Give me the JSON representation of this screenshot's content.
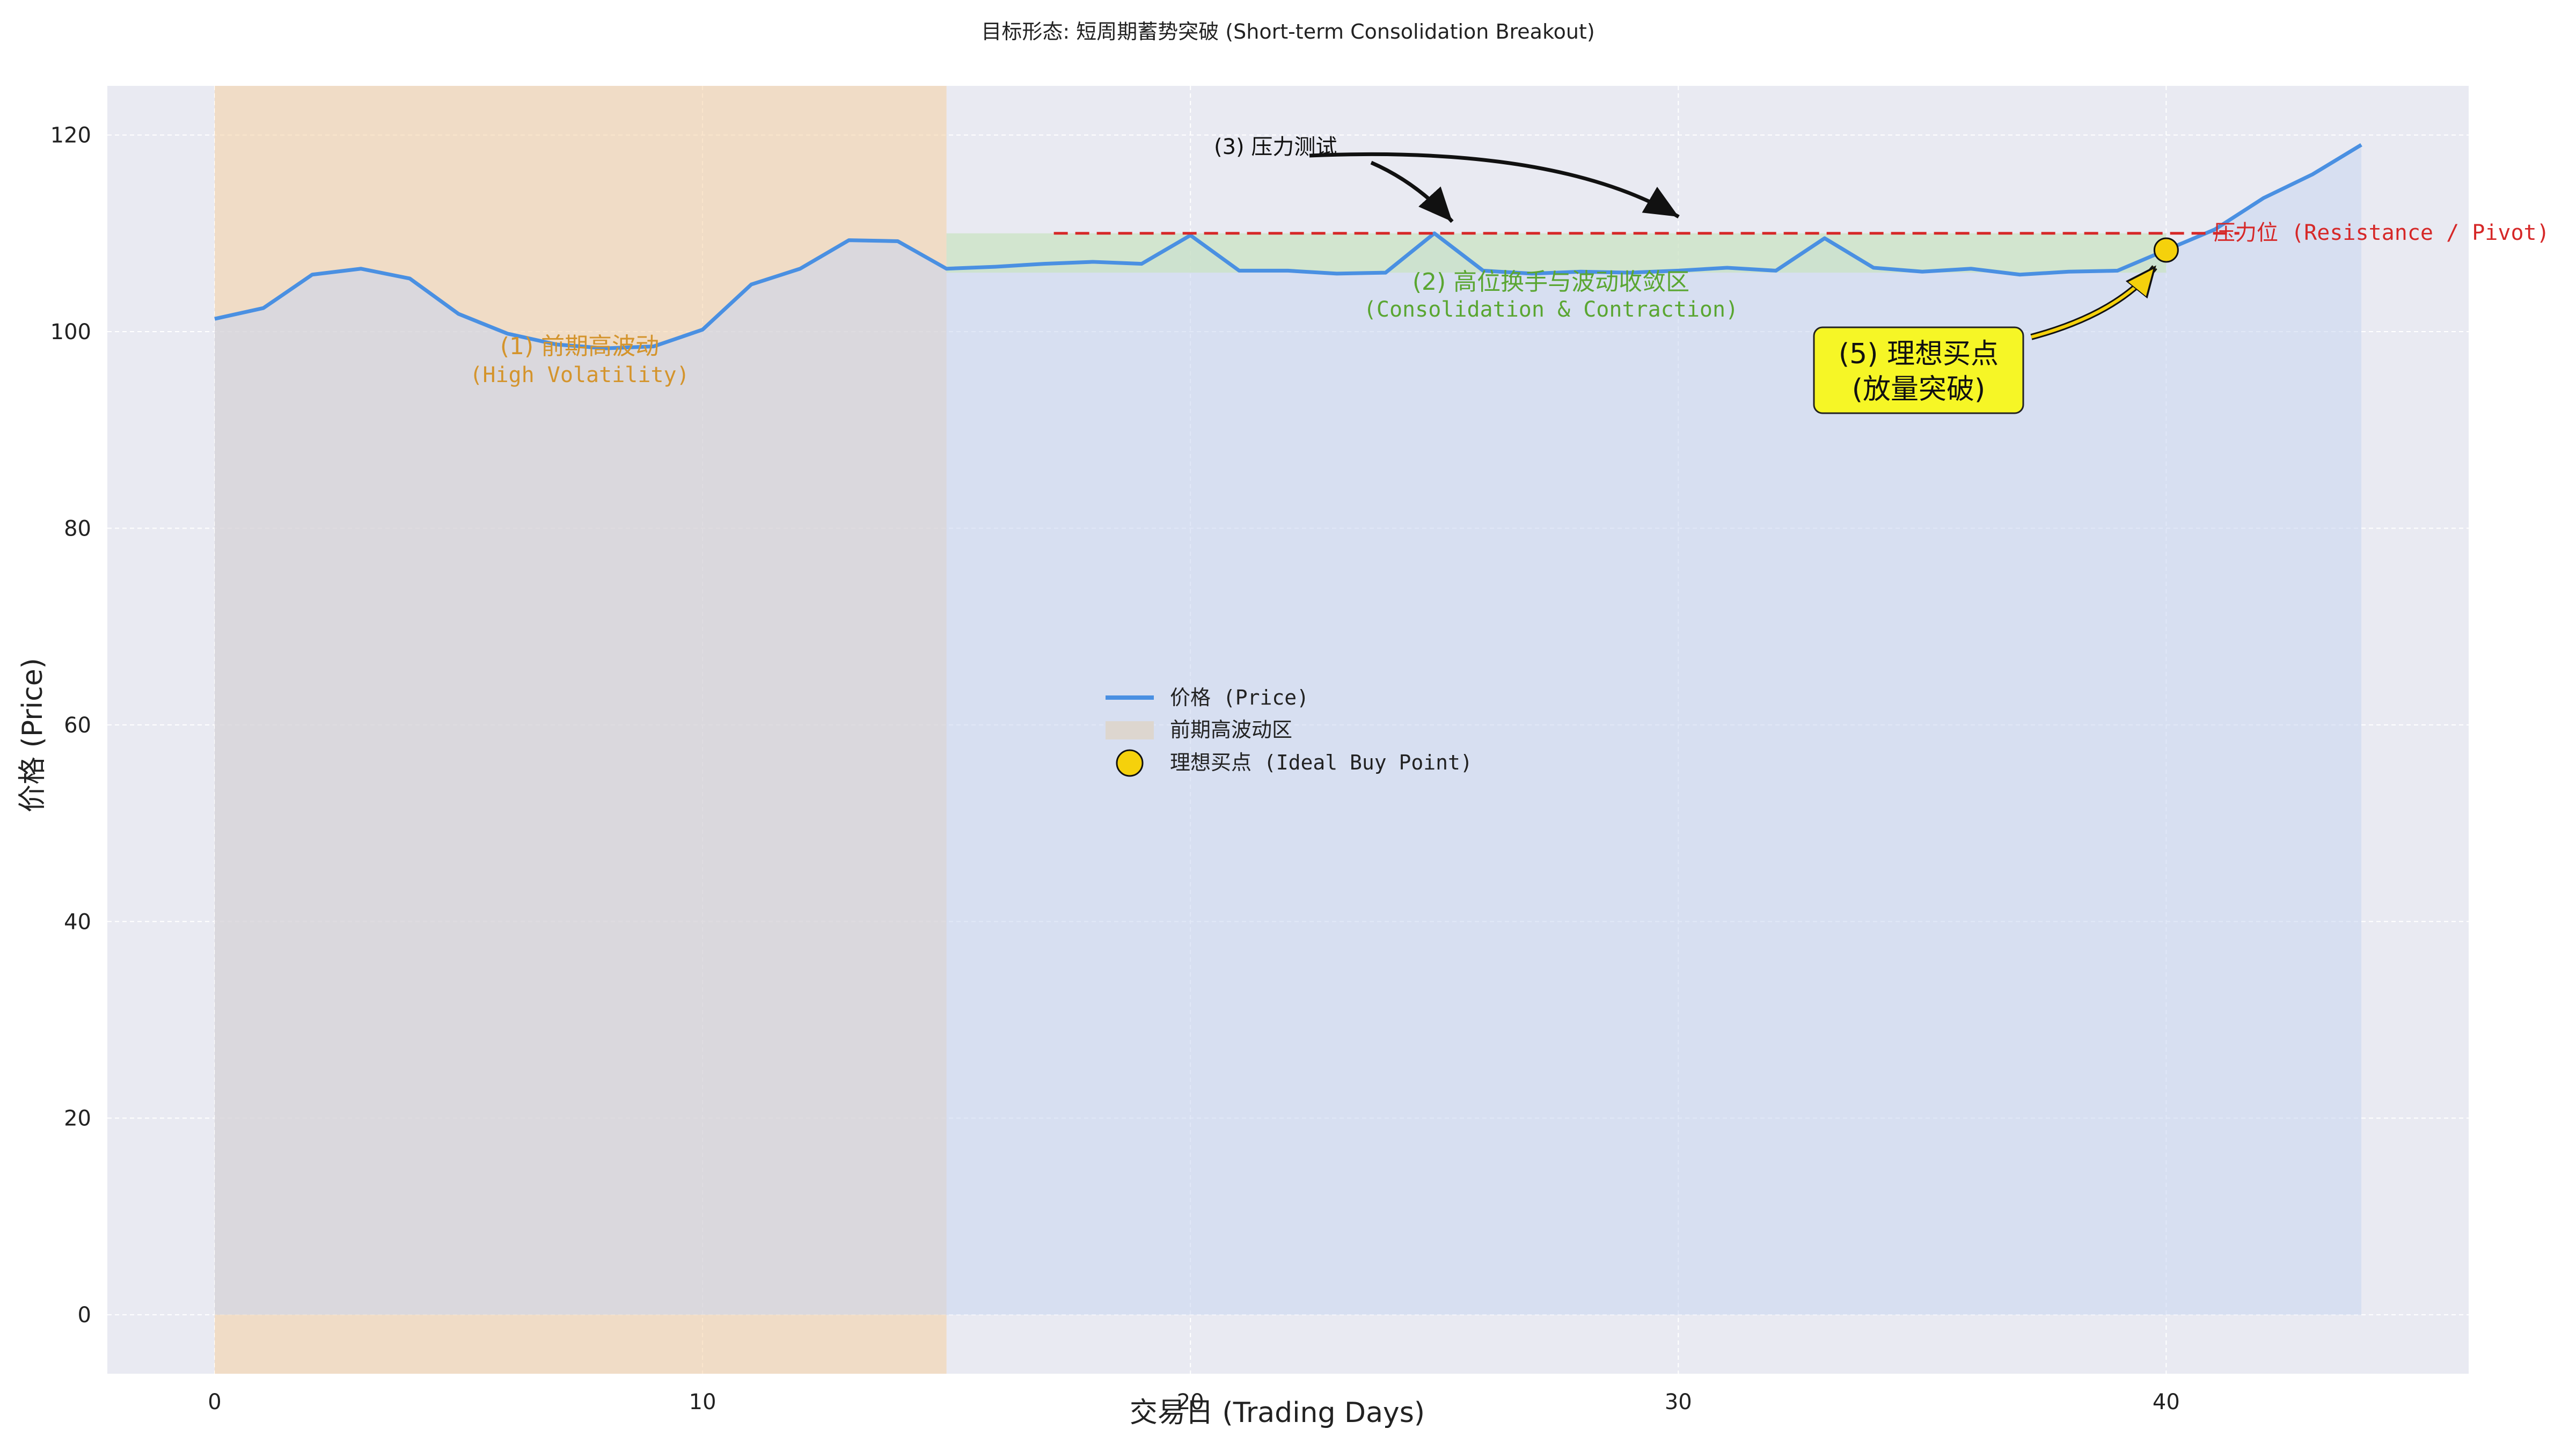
{
  "chart_data": {
    "type": "line",
    "title": "目标形态: 短周期蓄势突破 (Short-term Consolidation Breakout)",
    "xlabel": "交易日 (Trading Days)",
    "ylabel": "价格 (Price)",
    "xlim": [
      -2.2,
      46.2
    ],
    "ylim": [
      -6,
      125
    ],
    "xticks": [
      0,
      10,
      20,
      30,
      40
    ],
    "yticks": [
      0,
      20,
      40,
      60,
      80,
      100,
      120
    ],
    "grid": true,
    "legend_position": "center",
    "series": [
      {
        "name": "价格 (Price)",
        "color": "#4a90e2",
        "x": [
          0,
          1,
          2,
          3,
          4,
          5,
          6,
          7,
          8,
          9,
          10,
          11,
          12,
          13,
          14,
          15,
          16,
          17,
          18,
          19,
          20,
          21,
          22,
          23,
          24,
          25,
          26,
          27,
          28,
          29,
          30,
          31,
          32,
          33,
          34,
          35,
          36,
          37,
          38,
          39,
          40,
          41,
          42,
          43,
          44
        ],
        "y": [
          101.3,
          102.4,
          105.8,
          106.4,
          105.4,
          101.8,
          99.8,
          98.7,
          98.3,
          98.5,
          100.2,
          104.8,
          106.4,
          109.3,
          109.2,
          106.4,
          106.6,
          106.9,
          107.1,
          106.9,
          109.8,
          106.2,
          106.2,
          105.9,
          106.0,
          110.0,
          106.2,
          105.9,
          106.1,
          106.0,
          106.2,
          106.5,
          106.2,
          109.5,
          106.5,
          106.1,
          106.4,
          105.8,
          106.1,
          106.2,
          108.3,
          110.4,
          113.6,
          116.0,
          119.0
        ]
      }
    ],
    "high_volatility_zone": {
      "label": "前期高波动区",
      "x_range": [
        0,
        15
      ],
      "color": "#f5cfa3"
    },
    "consolidation_band": {
      "x_range": [
        15,
        40
      ],
      "y_range": [
        106,
        110
      ],
      "color": "#c9e3c3"
    },
    "resistance": {
      "value": 110,
      "x_range": [
        17.2,
        41.5
      ],
      "label": "压力位 (Resistance / Pivot)",
      "color": "#d62828"
    },
    "buy_point": {
      "x": 40,
      "y": 108.3,
      "label": "理想买点 (Ideal Buy Point)",
      "color": "#f5d10c"
    },
    "annotations": {
      "zone1_line1": "(1) 前期高波动",
      "zone1_line2": "(High Volatility)",
      "zone2_line1": "(2) 高位换手与波动收敛区",
      "zone2_line2": "(Consolidation & Contraction)",
      "test_label": "(3) 压力测试",
      "buy_line1": "(5) 理想买点",
      "buy_line2": "(放量突破)"
    }
  }
}
